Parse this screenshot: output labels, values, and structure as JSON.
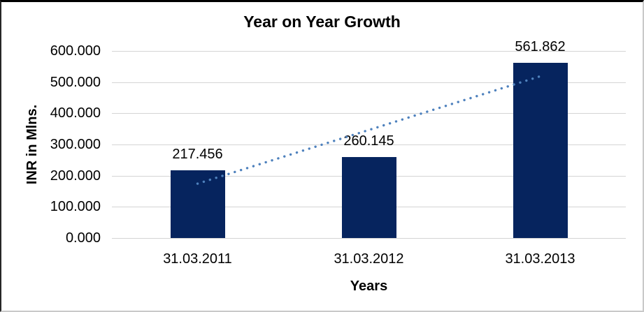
{
  "chart_data": {
    "type": "bar",
    "title": "Year on Year Growth",
    "xlabel": "Years",
    "ylabel": "INR in Mlns.",
    "categories": [
      "31.03.2011",
      "31.03.2012",
      "31.03.2013"
    ],
    "values": [
      217.456,
      260.145,
      561.862
    ],
    "data_labels": [
      "217.456",
      "260.145",
      "561.862"
    ],
    "yticks": [
      {
        "value": 0,
        "label": "0.000"
      },
      {
        "value": 100,
        "label": "100.000"
      },
      {
        "value": 200,
        "label": "200.000"
      },
      {
        "value": 300,
        "label": "300.000"
      },
      {
        "value": 400,
        "label": "400.000"
      },
      {
        "value": 500,
        "label": "500.000"
      },
      {
        "value": 600,
        "label": "600.000"
      }
    ],
    "ylim": [
      0,
      600
    ],
    "grid": true,
    "legend_position": "none",
    "trendline": {
      "type": "linear",
      "style": "dotted"
    },
    "colors": {
      "bar": "#06245e",
      "trendline": "#4e81bd",
      "gridline": "#d4d4d4",
      "text": "#000000",
      "background": "#ffffff"
    }
  }
}
